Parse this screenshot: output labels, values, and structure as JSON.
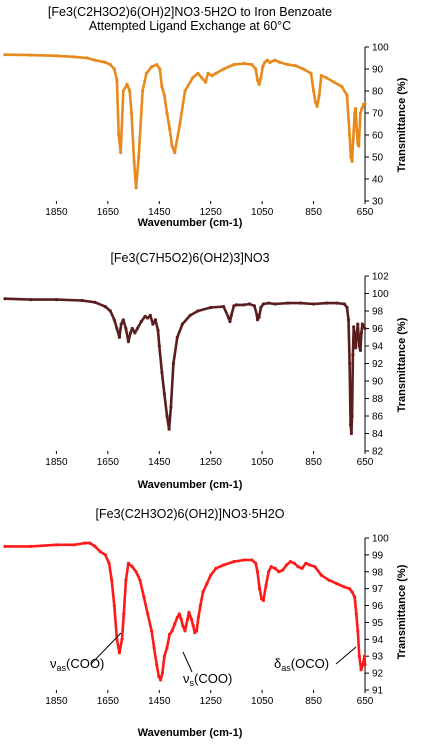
{
  "chart_data": [
    {
      "type": "line",
      "title_line1": "[Fe3(C2H3O2)6(OH)2]NO3·5H2O to Iron Benzoate",
      "title_line2": "Attempted Ligand Exchange at 60°C",
      "xlabel": "Wavenumber (cm-1)",
      "ylabel": "Transmittance (%)",
      "xlim": [
        2050,
        650
      ],
      "ylim": [
        30,
        100
      ],
      "xticks": [
        1850,
        1650,
        1450,
        1250,
        1050,
        850,
        650
      ],
      "yticks": [
        30,
        40,
        50,
        60,
        70,
        80,
        90,
        100
      ],
      "color": "#e8891c",
      "series": [
        {
          "x": [
            2050,
            1950,
            1850,
            1780,
            1730,
            1700,
            1660,
            1640,
            1625,
            1615,
            1608,
            1600,
            1590,
            1575,
            1565,
            1558,
            1548,
            1540,
            1530,
            1515,
            1500,
            1480,
            1460,
            1448,
            1440,
            1430,
            1420,
            1410,
            1400,
            1390,
            1370,
            1350,
            1320,
            1300,
            1285,
            1270,
            1260,
            1245,
            1230,
            1200,
            1180,
            1160,
            1120,
            1090,
            1075,
            1068,
            1062,
            1055,
            1048,
            1040,
            1030,
            1020,
            1000,
            980,
            950,
            920,
            890,
            860,
            850,
            843,
            836,
            828,
            820,
            800,
            770,
            740,
            720,
            710,
            705,
            700,
            696,
            690,
            686,
            682,
            678,
            674,
            668,
            662,
            655,
            650
          ],
          "y": [
            96.5,
            96.3,
            96,
            95.5,
            95,
            94,
            93,
            92,
            90,
            85,
            60,
            52,
            80,
            83,
            80,
            70,
            48,
            36,
            50,
            80,
            88,
            91,
            92,
            90,
            82,
            78,
            70,
            63,
            55,
            52,
            65,
            80,
            86,
            88,
            86,
            84,
            88,
            87,
            88,
            90,
            91,
            92,
            92.5,
            92,
            90,
            85,
            83,
            86,
            91,
            93,
            94,
            93,
            94,
            93,
            92,
            91.5,
            90,
            88,
            80,
            75,
            73,
            78,
            87,
            86,
            84,
            82,
            78,
            60,
            50,
            48,
            58,
            70,
            72,
            62,
            56,
            55,
            70,
            72,
            74,
            74
          ]
        }
      ]
    },
    {
      "type": "line",
      "title": "[Fe3(C7H5O2)6(OH2)3]NO3",
      "xlabel": "Wavenumber (cm-1)",
      "ylabel": "Transmittance (%)",
      "xlim": [
        2050,
        650
      ],
      "ylim": [
        82,
        102
      ],
      "xticks": [
        1850,
        1650,
        1450,
        1250,
        1050,
        850,
        650
      ],
      "yticks": [
        82,
        84,
        86,
        88,
        90,
        92,
        94,
        96,
        98,
        100,
        102
      ],
      "color": "#5a1e1e",
      "series": [
        {
          "x": [
            2050,
            1950,
            1850,
            1750,
            1700,
            1660,
            1640,
            1625,
            1615,
            1605,
            1598,
            1590,
            1580,
            1570,
            1562,
            1555,
            1545,
            1535,
            1520,
            1505,
            1495,
            1485,
            1475,
            1465,
            1455,
            1450,
            1440,
            1430,
            1420,
            1412,
            1405,
            1395,
            1380,
            1360,
            1330,
            1300,
            1250,
            1200,
            1180,
            1175,
            1170,
            1160,
            1150,
            1120,
            1100,
            1080,
            1070,
            1068,
            1062,
            1055,
            1045,
            1025,
            1000,
            950,
            900,
            850,
            800,
            760,
            730,
            720,
            714,
            710,
            706,
            703,
            700,
            697,
            694,
            690,
            686,
            682,
            678,
            675,
            672,
            668,
            664,
            660,
            655,
            650
          ],
          "y": [
            99.4,
            99.3,
            99.3,
            99.2,
            99,
            98.5,
            98,
            97,
            96,
            95,
            96.5,
            97,
            96,
            94.5,
            95.5,
            96,
            95.5,
            96,
            96.8,
            97.4,
            97.2,
            97.5,
            96.5,
            97,
            95.8,
            94,
            91,
            88.5,
            86,
            84.5,
            87,
            92,
            95,
            96.5,
            97.5,
            98,
            98.4,
            98.5,
            97.2,
            96.8,
            97.5,
            98.6,
            98.7,
            98.7,
            98.8,
            98.6,
            97.5,
            97,
            97.3,
            98.4,
            98.8,
            98.9,
            98.8,
            98.9,
            98.9,
            98.8,
            98.9,
            98.9,
            98.8,
            98.4,
            97,
            92,
            85,
            84,
            86,
            93,
            96.2,
            94.5,
            93.8,
            95.5,
            96.5,
            95.2,
            94,
            93.5,
            95.5,
            96.5,
            96.3,
            96
          ]
        }
      ]
    },
    {
      "type": "line",
      "title": "[Fe3(C2H3O2)6(OH2)]NO3·5H2O",
      "xlabel": "Wavenumber (cm-1)",
      "ylabel": "Transmittance (%)",
      "xlim": [
        2050,
        650
      ],
      "ylim": [
        91,
        100
      ],
      "xticks": [
        1850,
        1650,
        1450,
        1250,
        1050,
        850,
        650
      ],
      "yticks": [
        91,
        92,
        93,
        94,
        95,
        96,
        97,
        98,
        99,
        100
      ],
      "color": "#ff1a1a",
      "series": [
        {
          "x": [
            2050,
            1950,
            1850,
            1780,
            1740,
            1720,
            1700,
            1680,
            1660,
            1645,
            1635,
            1625,
            1615,
            1605,
            1595,
            1588,
            1580,
            1570,
            1555,
            1540,
            1525,
            1510,
            1495,
            1480,
            1470,
            1460,
            1452,
            1445,
            1438,
            1430,
            1420,
            1410,
            1400,
            1390,
            1380,
            1372,
            1365,
            1358,
            1350,
            1340,
            1335,
            1325,
            1318,
            1312,
            1305,
            1298,
            1290,
            1280,
            1265,
            1250,
            1230,
            1200,
            1160,
            1120,
            1090,
            1075,
            1068,
            1060,
            1052,
            1045,
            1035,
            1025,
            1015,
            1000,
            985,
            970,
            955,
            940,
            925,
            910,
            895,
            880,
            865,
            845,
            820,
            790,
            760,
            730,
            710,
            700,
            690,
            684,
            678,
            672,
            665,
            658,
            652,
            650
          ],
          "y": [
            99.5,
            99.5,
            99.6,
            99.6,
            99.7,
            99.7,
            99.5,
            99.2,
            99,
            98.5,
            97.5,
            96,
            94,
            93.2,
            94,
            95.5,
            97.5,
            98.5,
            98.3,
            98,
            97.5,
            96.5,
            95.5,
            94.5,
            93.5,
            92.5,
            91.8,
            91.6,
            92,
            93,
            93.5,
            94.3,
            94.5,
            94.9,
            95.3,
            95.5,
            95.2,
            94.8,
            94.5,
            95.2,
            95.6,
            95.2,
            94.8,
            94.4,
            94.5,
            95.3,
            96,
            96.8,
            97.3,
            97.8,
            98.2,
            98.4,
            98.6,
            98.7,
            98.7,
            98.5,
            98,
            97,
            96.4,
            96.3,
            97.2,
            98,
            98.3,
            98.2,
            98,
            98.1,
            98.4,
            98.6,
            98.5,
            98.3,
            98.2,
            98.5,
            98.4,
            98.3,
            97.8,
            97.5,
            97.3,
            97.1,
            97,
            96.8,
            96.5,
            95.5,
            94.5,
            93,
            92.2,
            92.5,
            93,
            92.5
          ]
        }
      ]
    }
  ],
  "annotations": {
    "nu_as_symbol": "ν",
    "nu_as_sub": "as",
    "nu_as_rest": "(COO)",
    "nu_s_symbol": "ν",
    "nu_s_sub": "s",
    "nu_s_rest": "(COO)",
    "delta_as_symbol": "δ",
    "delta_as_sub": "as",
    "delta_as_rest": "(OCO)"
  }
}
